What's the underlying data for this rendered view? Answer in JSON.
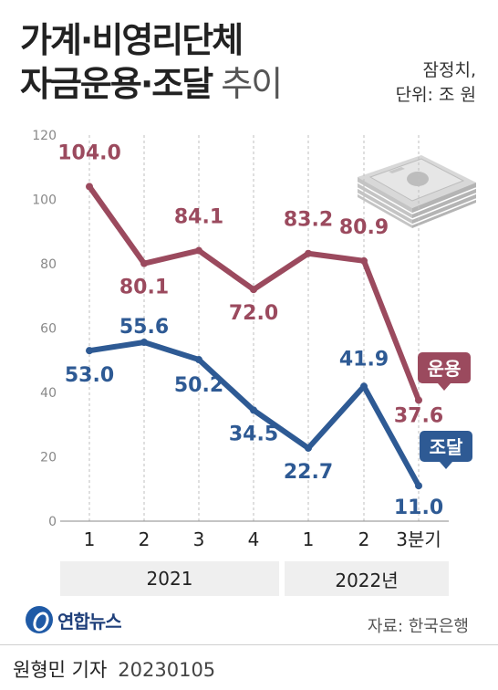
{
  "header": {
    "title_line1": "가계·비영리단체",
    "title_line2_bold": "자금운용·조달",
    "title_line2_light": " 추이",
    "note_line1": "잠정치,",
    "note_line2": "단위: 조 원"
  },
  "chart_data": {
    "type": "line",
    "categories": [
      "1",
      "2",
      "3",
      "4",
      "1",
      "2",
      "3분기"
    ],
    "x_groups": [
      {
        "label": "2021",
        "span": [
          0,
          3
        ]
      },
      {
        "label": "2022년",
        "span": [
          4,
          6
        ]
      }
    ],
    "ylim": [
      0,
      120
    ],
    "yticks": [
      0,
      20,
      40,
      60,
      80,
      100,
      120
    ],
    "grid": "vertical dashed",
    "series": [
      {
        "name": "운용",
        "color": "#9b4a5e",
        "values": [
          104.0,
          80.1,
          84.1,
          72.0,
          83.2,
          80.9,
          37.6
        ]
      },
      {
        "name": "조달",
        "color": "#2e5a94",
        "values": [
          53.0,
          55.6,
          50.2,
          34.5,
          22.7,
          41.9,
          11.0
        ]
      }
    ]
  },
  "footer": {
    "logo_text": "연합뉴스",
    "logo_icon": "yonhap-logo-icon",
    "source": "자료: 한국은행",
    "byline": "원형민 기자",
    "date": "20230105"
  },
  "colors": {
    "accent": "#9b4a5e",
    "secondary": "#2e5a94"
  }
}
